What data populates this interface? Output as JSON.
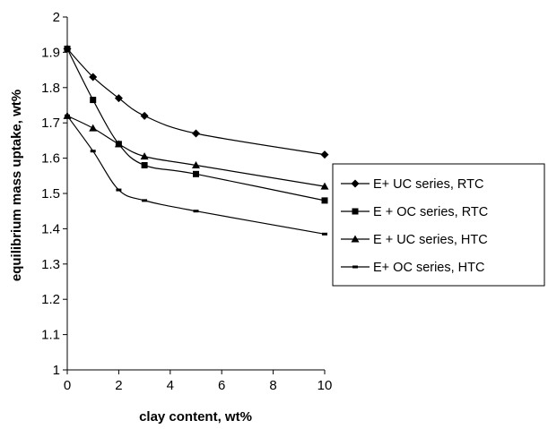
{
  "chart_data": {
    "type": "line",
    "title": "",
    "xlabel": "clay content, wt%",
    "ylabel": "equilibrium mass uptake, wt%",
    "xlim": [
      0,
      10
    ],
    "ylim": [
      1,
      2
    ],
    "x_ticks": [
      "0",
      "2",
      "4",
      "6",
      "8",
      "10"
    ],
    "y_ticks": [
      "1",
      "1.1",
      "1.2",
      "1.3",
      "1.4",
      "1.5",
      "1.6",
      "1.7",
      "1.8",
      "1.9",
      "2"
    ],
    "grid": false,
    "legend_position": "right",
    "series": [
      {
        "name": "E+ UC series, RTC",
        "marker": "diamond",
        "x": [
          0,
          1,
          2,
          3,
          5,
          10
        ],
        "y": [
          1.91,
          1.83,
          1.77,
          1.72,
          1.67,
          1.61
        ]
      },
      {
        "name": "E + OC series, RTC",
        "marker": "square",
        "x": [
          0,
          1,
          2,
          3,
          5,
          10
        ],
        "y": [
          1.91,
          1.765,
          1.64,
          1.58,
          1.555,
          1.48
        ]
      },
      {
        "name": "E + UC series, HTC",
        "marker": "triangle",
        "x": [
          0,
          1,
          2,
          3,
          5,
          10
        ],
        "y": [
          1.72,
          1.685,
          1.64,
          1.605,
          1.58,
          1.52
        ]
      },
      {
        "name": "E+ OC series, HTC",
        "marker": "dash",
        "x": [
          0,
          1,
          2,
          3,
          5,
          10
        ],
        "y": [
          1.72,
          1.62,
          1.51,
          1.48,
          1.45,
          1.385
        ]
      }
    ]
  }
}
